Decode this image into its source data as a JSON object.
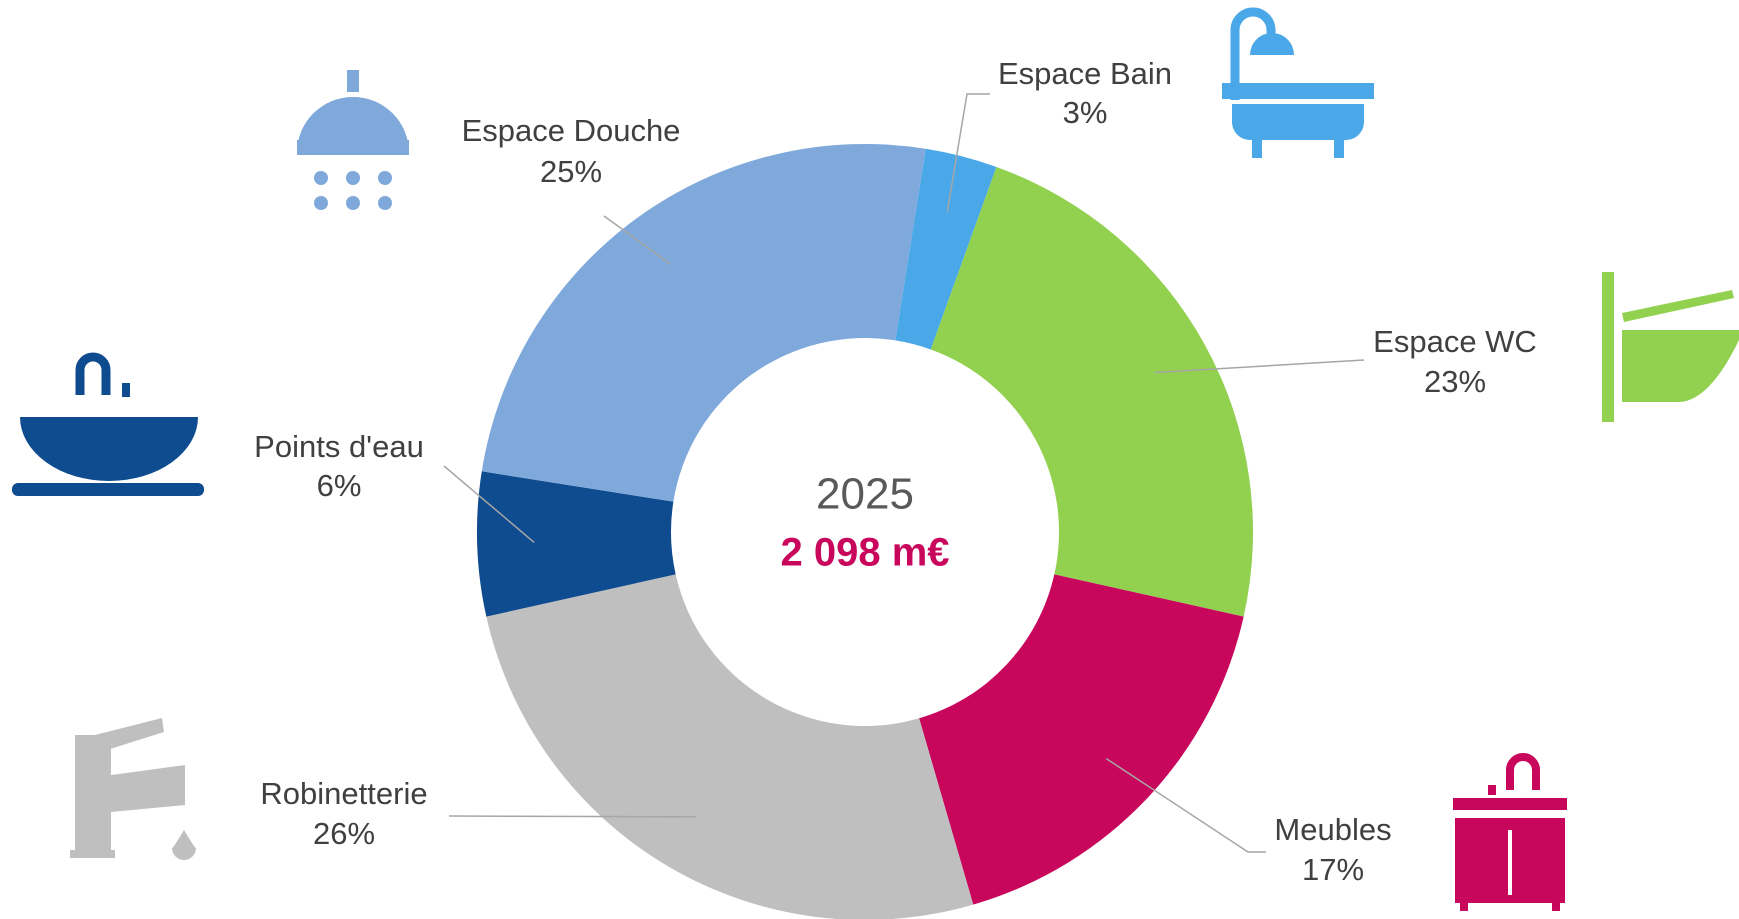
{
  "chart_data": {
    "type": "donut",
    "center_title": "2025",
    "center_value": "2 098 m€",
    "start_angle": 9,
    "categories": [
      "Espace Bain",
      "Espace WC",
      "Meubles",
      "Robinetterie",
      "Points d'eau",
      "Espace Douche"
    ],
    "values": [
      3,
      23,
      17,
      26,
      6,
      25
    ],
    "value_labels": [
      "3%",
      "23%",
      "17%",
      "26%",
      "6%",
      "25%"
    ],
    "colors": [
      "#4aa8e8",
      "#92d050",
      "#c8075c",
      "#bfbfbf",
      "#0f4c8f",
      "#7fa9db"
    ]
  }
}
